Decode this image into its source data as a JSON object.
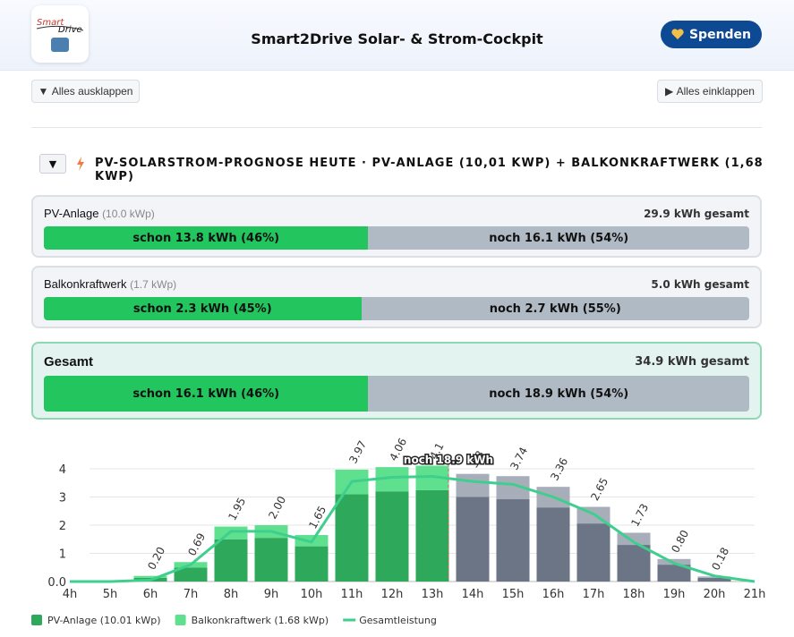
{
  "header": {
    "logo": {
      "line1": "Smart",
      "line2": "Drive"
    },
    "title": "Smart2Drive Solar- & Strom-Cockpit",
    "donate": "Spenden"
  },
  "toolbar": {
    "expand": "Alles ausklappen",
    "collapse": "Alles einklappen"
  },
  "section": {
    "title": "PV-SOLARSTROM-PROGNOSE HEUTE · PV-ANLAGE (10,01 KWP) + BALKONKRAFTWERK (1,68 KWP)"
  },
  "cards": [
    {
      "name": "PV-Anlage",
      "kwp": "(10.0 kWp)",
      "total": "29.9 kWh gesamt",
      "done": {
        "value": 46,
        "label": "schon 13.8 kWh (46%)"
      },
      "rest": {
        "value": 54,
        "label": "noch 16.1 kWh (54%)"
      }
    },
    {
      "name": "Balkonkraftwerk",
      "kwp": "(1.7 kWp)",
      "total": "5.0 kWh gesamt",
      "done": {
        "value": 45,
        "label": "schon 2.3 kWh (45%)"
      },
      "rest": {
        "value": 55,
        "label": "noch 2.7 kWh (55%)"
      }
    },
    {
      "name": "Gesamt",
      "total": "34.9 kWh gesamt",
      "done": {
        "value": 46,
        "label": "schon 16.1 kWh (46%)"
      },
      "rest": {
        "value": 54,
        "label": "noch 18.9 kWh (54%)"
      }
    }
  ],
  "chart_data": {
    "type": "bar",
    "stacked": true,
    "categories": [
      "4h",
      "5h",
      "6h",
      "7h",
      "8h",
      "9h",
      "10h",
      "11h",
      "12h",
      "13h",
      "14h",
      "15h",
      "16h",
      "17h",
      "18h",
      "19h",
      "20h",
      "21h"
    ],
    "series": [
      {
        "name": "PV-Anlage (10.01 kWp)",
        "color": "#2ea85a",
        "future_color": "#6b7585",
        "values": [
          null,
          null,
          0.13,
          0.5,
          1.5,
          1.55,
          1.25,
          3.1,
          3.2,
          3.24,
          3.0,
          2.92,
          2.63,
          2.06,
          1.3,
          0.6,
          0.13,
          null
        ]
      },
      {
        "name": "Balkonkraftwerk (1.68 kWp)",
        "color": "#5ee08f",
        "future_color": "#a7aeb9",
        "values": [
          null,
          null,
          0.07,
          0.19,
          0.45,
          0.45,
          0.4,
          0.87,
          0.86,
          0.87,
          0.82,
          0.82,
          0.73,
          0.59,
          0.43,
          0.2,
          0.05,
          null
        ]
      },
      {
        "name": "Gesamtleistung",
        "type": "line",
        "color": "#3ecf8e",
        "values": [
          0,
          0,
          0.05,
          0.6,
          1.78,
          1.78,
          1.4,
          3.55,
          3.7,
          3.73,
          3.55,
          3.45,
          3.0,
          2.4,
          1.4,
          0.65,
          0.2,
          0
        ]
      }
    ],
    "bar_totals": {
      "values": [
        null,
        null,
        0.2,
        0.69,
        1.95,
        2.0,
        1.65,
        3.97,
        4.06,
        4.11,
        3.82,
        3.74,
        3.36,
        2.65,
        1.73,
        0.8,
        0.18,
        null
      ],
      "value_labels": [
        null,
        null,
        "0.20",
        "0.69",
        "1.95",
        "2.00",
        "1.65",
        "3.97",
        "4.06",
        "4.1",
        "3.8",
        "3.74",
        "3.36",
        "2.65",
        "1.73",
        "0.80",
        "0.18",
        null
      ]
    },
    "annotation": "noch 18.9 kWh",
    "now_line": 13.4,
    "ylim": [
      0,
      4.5
    ],
    "yticks": [
      {
        "value": 0,
        "label": "0.0"
      },
      1,
      2,
      3,
      4
    ],
    "grid": true
  }
}
